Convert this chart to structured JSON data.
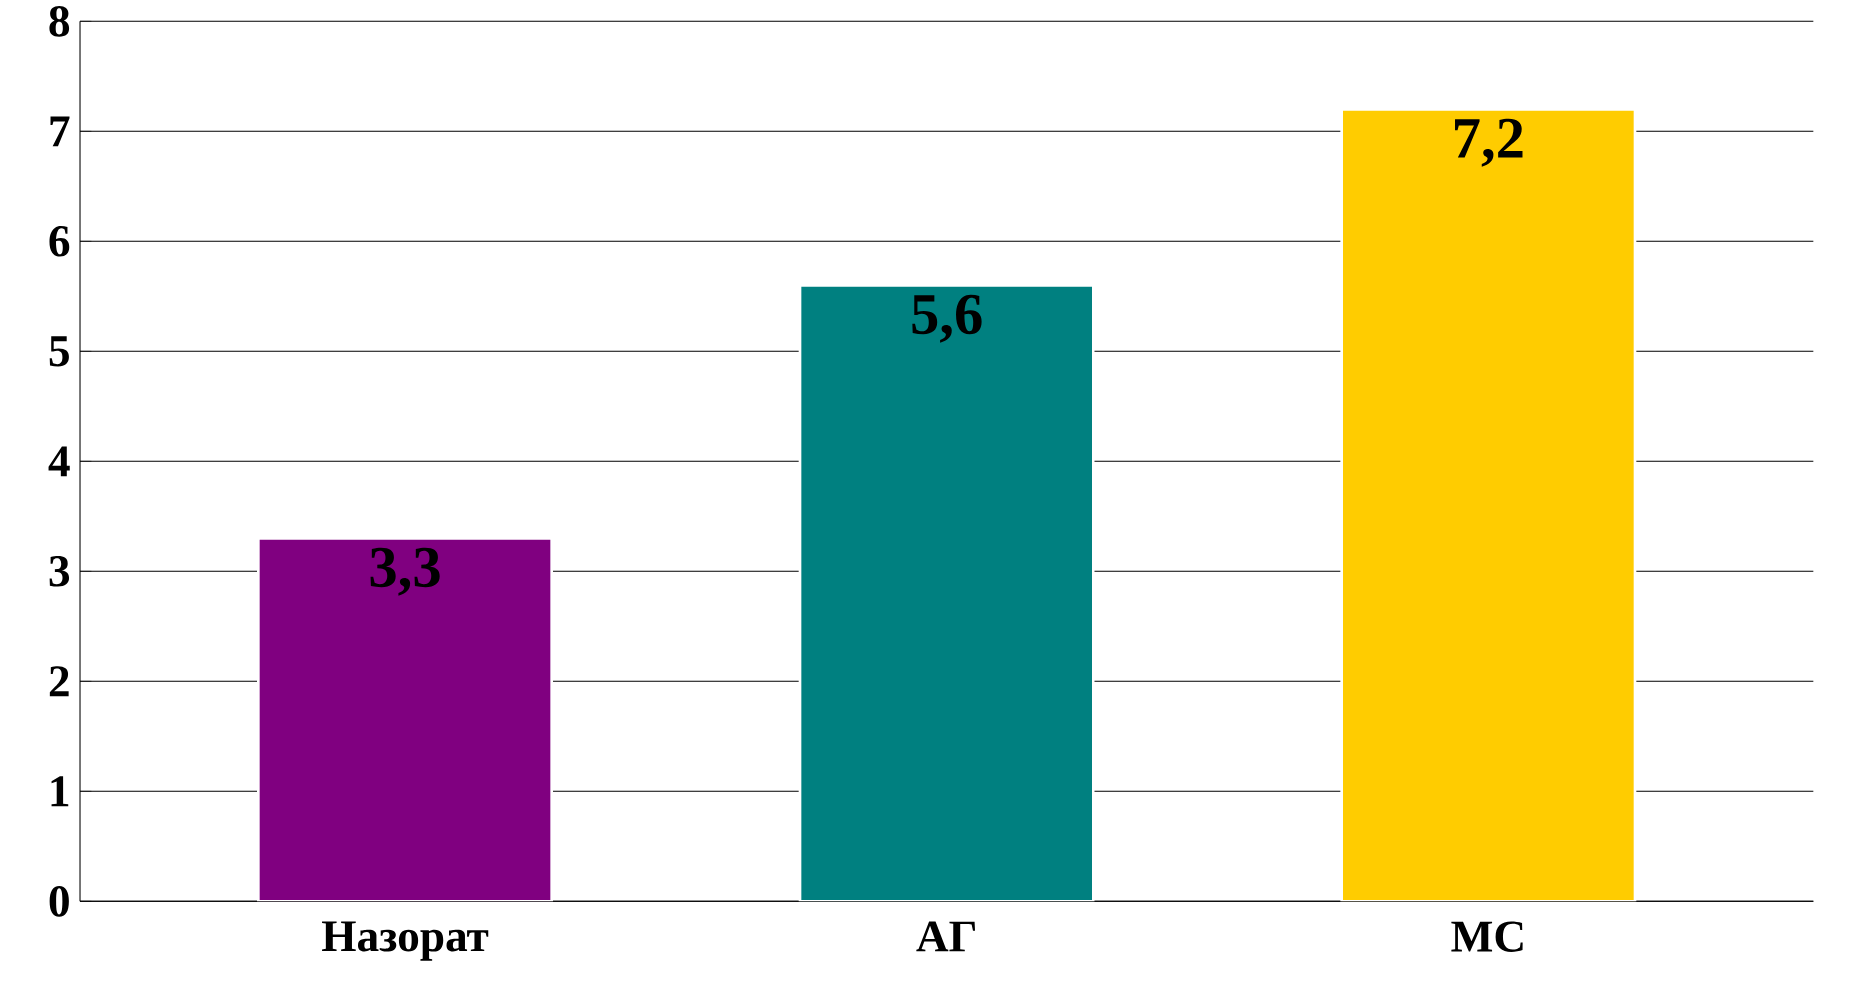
{
  "chart_data": {
    "type": "bar",
    "categories": [
      "Назорат",
      "АГ",
      "МС"
    ],
    "values": [
      3.3,
      5.6,
      7.2
    ],
    "colors": [
      "#800080",
      "#008080",
      "#ffcc00"
    ],
    "value_labels": [
      "3,3",
      "5,6",
      "7,2"
    ],
    "ylim": [
      0,
      8
    ],
    "yticks": [
      0,
      1,
      2,
      3,
      4,
      5,
      6,
      7,
      8
    ],
    "grid": "y"
  }
}
